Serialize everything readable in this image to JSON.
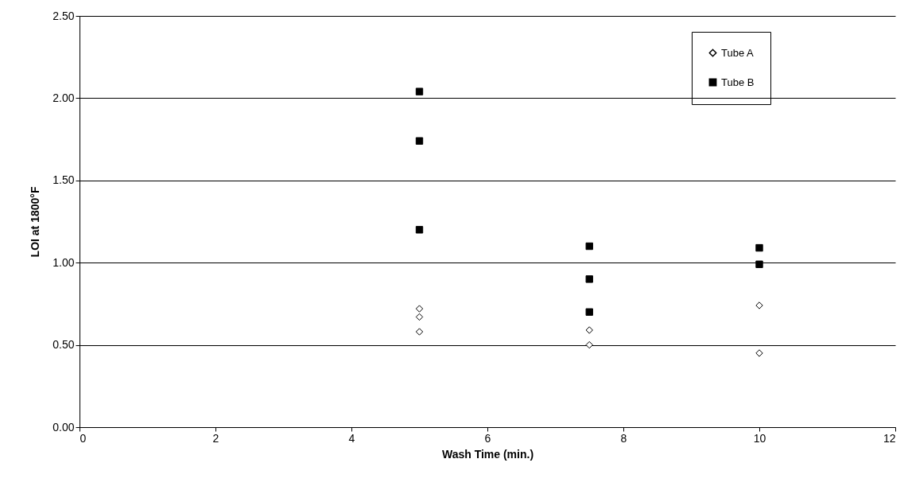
{
  "chart_data": {
    "type": "scatter",
    "xlabel": "Wash Time (min.)",
    "ylabel": "LOI at 1800°F",
    "xlim": [
      0,
      12
    ],
    "xticks": [
      0,
      2,
      4,
      6,
      8,
      10,
      12
    ],
    "ylim": [
      0,
      2.5
    ],
    "yticks": [
      {
        "value": 0,
        "label": "0.00"
      },
      {
        "value": 0.5,
        "label": "0.50"
      },
      {
        "value": 1,
        "label": "1.00"
      },
      {
        "value": 1.5,
        "label": "1.50"
      },
      {
        "value": 2,
        "label": "2.00"
      },
      {
        "value": 2.5,
        "label": "2.50"
      }
    ],
    "grid": "y",
    "legend": "top right",
    "series": [
      {
        "name": "Tube A",
        "color": "#000000",
        "marker": "diamond",
        "x": [
          5,
          5,
          5,
          7.5,
          7.5,
          10,
          10
        ],
        "values": [
          0.72,
          0.67,
          0.58,
          0.59,
          0.5,
          0.74,
          0.45
        ]
      },
      {
        "name": "Tube B",
        "color": "#000000",
        "marker": "square",
        "x": [
          5,
          5,
          5,
          7.5,
          7.5,
          7.5,
          10,
          10
        ],
        "values": [
          2.04,
          1.74,
          1.2,
          1.1,
          0.9,
          0.7,
          1.09,
          0.99
        ]
      }
    ]
  }
}
